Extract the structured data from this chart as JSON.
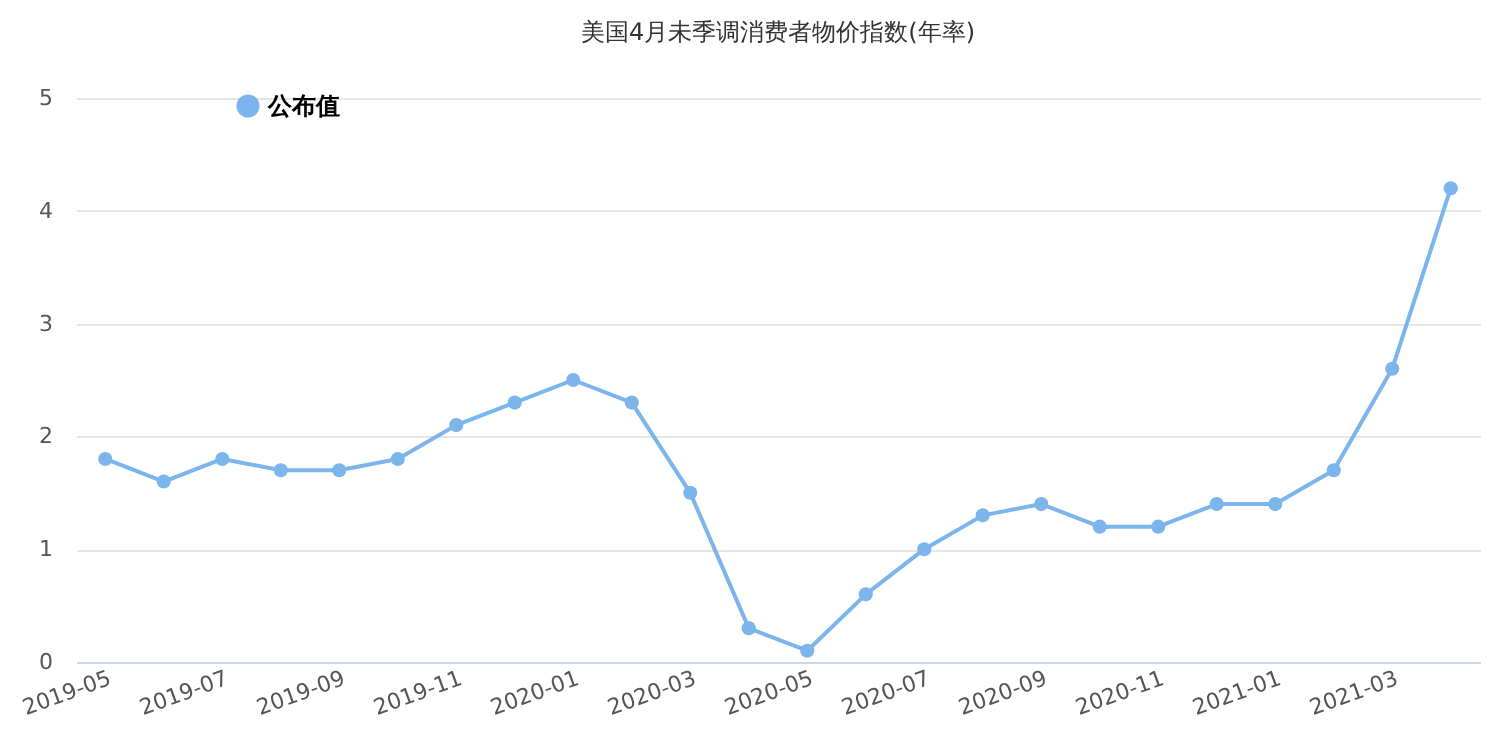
{
  "chart_data": {
    "type": "line",
    "title": "美国4月未季调消费者物价指数(年率)",
    "categories": [
      "2019-05",
      null,
      "2019-07",
      null,
      "2019-09",
      null,
      "2019-11",
      null,
      "2020-01",
      null,
      "2020-03",
      null,
      "2020-05",
      null,
      "2020-07",
      null,
      "2020-09",
      null,
      "2020-11",
      null,
      "2021-01",
      null,
      "2021-03",
      null
    ],
    "series": [
      {
        "name": "公布值",
        "color": "#7cb5ec",
        "values": [
          1.8,
          1.6,
          1.8,
          1.7,
          1.7,
          1.8,
          2.1,
          2.3,
          2.5,
          2.3,
          1.5,
          0.3,
          0.1,
          0.6,
          1.0,
          1.3,
          1.4,
          1.2,
          1.2,
          1.4,
          1.4,
          1.7,
          2.6,
          4.2
        ]
      }
    ],
    "ylim": [
      0,
      5
    ],
    "yticks": [
      0,
      1,
      2,
      3,
      4,
      5
    ],
    "grid": "y",
    "legend": "top left",
    "marker": "circle",
    "line_style": "solid"
  }
}
